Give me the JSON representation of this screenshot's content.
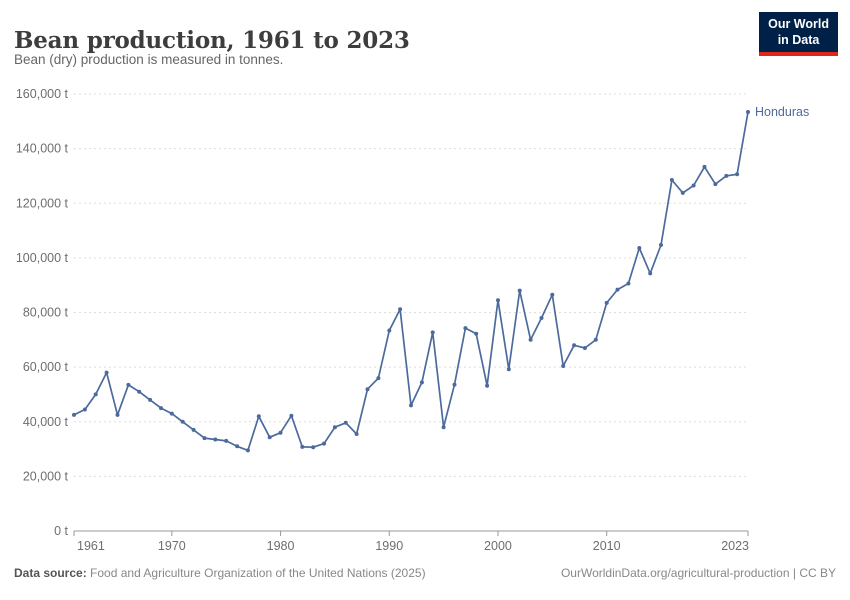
{
  "header": {
    "title": "Bean production, 1961 to 2023",
    "subtitle": "Bean (dry) production is measured in tonnes.",
    "logo": {
      "line1": "Our World",
      "line2": "in Data"
    }
  },
  "colors": {
    "line": "#4c6a9c",
    "entity_label": "#4c6a9c",
    "logo_bg": "#002147",
    "logo_accent": "#e0261c",
    "gridline": "#dedede",
    "axis": "#999999",
    "tick_label": "#6e6e6e"
  },
  "chart_data": {
    "type": "line",
    "title": "Bean production, 1961 to 2023",
    "subtitle": "Bean (dry) production is measured in tonnes.",
    "unit": "t",
    "xlim": [
      1961,
      2023
    ],
    "ylim": [
      0,
      160000
    ],
    "x_ticks": [
      1961,
      1970,
      1980,
      1990,
      2000,
      2010,
      2023
    ],
    "y_ticks": [
      0,
      20000,
      40000,
      60000,
      80000,
      100000,
      120000,
      140000,
      160000
    ],
    "grid": "horizontal-dashed",
    "legend_position": "end-of-line-label",
    "series": [
      {
        "name": "Honduras",
        "color": "#4c6a9c",
        "x": [
          1961,
          1962,
          1963,
          1964,
          1965,
          1966,
          1967,
          1968,
          1969,
          1970,
          1971,
          1972,
          1973,
          1974,
          1975,
          1976,
          1977,
          1978,
          1979,
          1980,
          1981,
          1982,
          1983,
          1984,
          1985,
          1986,
          1987,
          1988,
          1989,
          1990,
          1991,
          1992,
          1993,
          1994,
          1995,
          1996,
          1997,
          1998,
          1999,
          2000,
          2001,
          2002,
          2003,
          2004,
          2005,
          2006,
          2007,
          2008,
          2009,
          2010,
          2011,
          2012,
          2013,
          2014,
          2015,
          2016,
          2017,
          2018,
          2019,
          2020,
          2021,
          2022,
          2023
        ],
        "values": [
          42500,
          44500,
          50000,
          58000,
          42500,
          53500,
          51000,
          48000,
          45000,
          43000,
          40000,
          37000,
          34000,
          33500,
          33000,
          31000,
          29500,
          42000,
          34300,
          36000,
          42200,
          30800,
          30700,
          32000,
          38000,
          39600,
          35500,
          51900,
          56000,
          73400,
          81200,
          46000,
          54400,
          72700,
          38000,
          53600,
          74300,
          72200,
          53200,
          84500,
          59200,
          88000,
          70000,
          78000,
          86500,
          60400,
          68000,
          67000,
          70000,
          83500,
          88400,
          90600,
          103600,
          94300,
          104700,
          128500,
          123800,
          126500,
          133300,
          127000,
          130000,
          130600,
          153400
        ]
      }
    ]
  },
  "footer": {
    "source_label": "Data source:",
    "source_text": " Food and Agriculture Organization of the United Nations (2025)",
    "link": "OurWorldinData.org/agricultural-production",
    "separator": " | ",
    "license": "CC BY"
  }
}
